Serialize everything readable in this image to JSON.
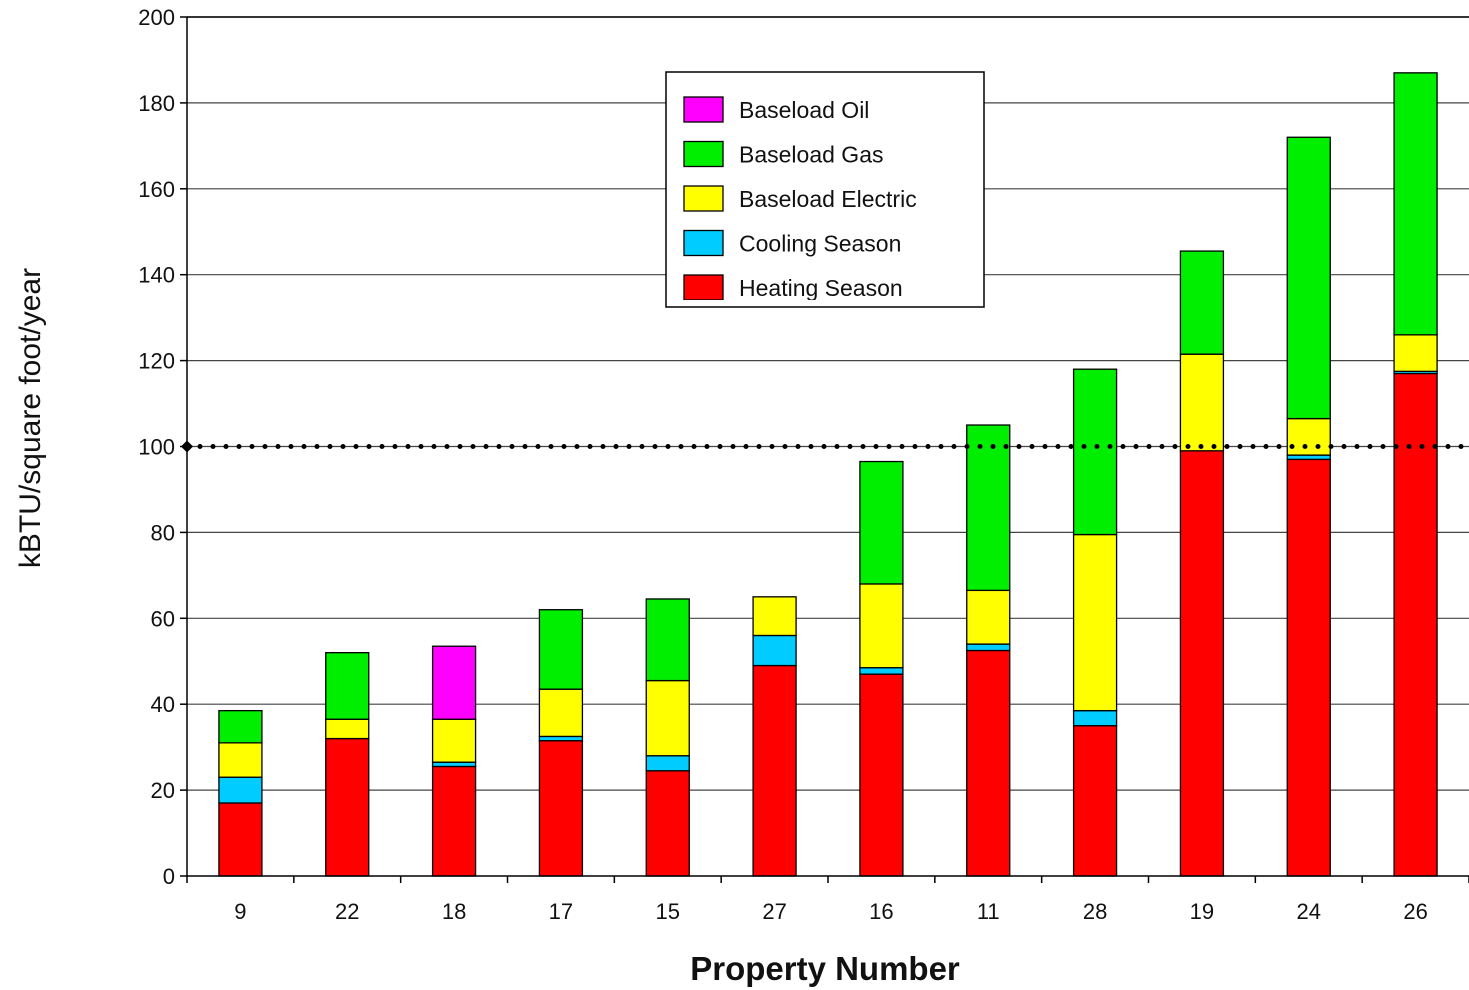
{
  "chart_data": {
    "type": "bar",
    "stacked": true,
    "title": "",
    "xlabel": "Property Number",
    "ylabel": "kBTU/square foot/year",
    "ylim": [
      0,
      200
    ],
    "yticks": [
      0,
      20,
      40,
      60,
      80,
      100,
      120,
      140,
      160,
      180,
      200
    ],
    "grid": "horizontal",
    "legend_position": "top-center",
    "reference_line": {
      "value": 100,
      "style": "dotted"
    },
    "categories": [
      "9",
      "22",
      "18",
      "17",
      "15",
      "27",
      "16",
      "11",
      "28",
      "19",
      "24",
      "26"
    ],
    "series": [
      {
        "name": "Heating Season",
        "color": "#ff0000",
        "values": [
          17,
          32,
          25.5,
          31.5,
          24.5,
          49,
          47,
          52.5,
          35,
          99,
          97,
          117
        ]
      },
      {
        "name": "Cooling Season",
        "color": "#00ccff",
        "values": [
          6,
          0,
          1,
          1,
          3.5,
          7,
          1.5,
          1.5,
          3.5,
          0,
          1,
          0.5
        ]
      },
      {
        "name": "Baseload Electric",
        "color": "#ffff00",
        "values": [
          8,
          4.5,
          10,
          11,
          17.5,
          9,
          19.5,
          12.5,
          41,
          22.5,
          8.5,
          8.5
        ]
      },
      {
        "name": "Baseload Gas",
        "color": "#00ee00",
        "values": [
          7.5,
          15.5,
          0,
          18.5,
          19,
          0,
          28.5,
          38.5,
          38.5,
          24,
          65.5,
          61
        ]
      },
      {
        "name": "Baseload Oil",
        "color": "#ff00ff",
        "values": [
          0,
          0,
          17,
          0,
          0,
          0,
          0,
          0,
          0,
          0,
          0,
          0
        ]
      }
    ],
    "legend_order": [
      "Baseload Oil",
      "Baseload Gas",
      "Baseload Electric",
      "Cooling Season",
      "Heating Season"
    ]
  }
}
